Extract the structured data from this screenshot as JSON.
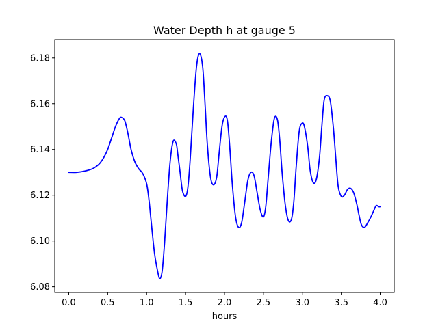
{
  "chart_data": {
    "type": "line",
    "title": "Water Depth h at gauge 5",
    "xlabel": "hours",
    "ylabel": "",
    "xlim": [
      -0.18,
      4.18
    ],
    "ylim": [
      6.0775,
      6.188
    ],
    "xticks": [
      0.0,
      0.5,
      1.0,
      1.5,
      2.0,
      2.5,
      3.0,
      3.5,
      4.0
    ],
    "xtick_labels": [
      "0.0",
      "0.5",
      "1.0",
      "1.5",
      "2.0",
      "2.5",
      "3.0",
      "3.5",
      "4.0"
    ],
    "yticks": [
      6.08,
      6.1,
      6.12,
      6.14,
      6.16,
      6.18
    ],
    "ytick_labels": [
      "6.08",
      "6.10",
      "6.12",
      "6.14",
      "6.16",
      "6.18"
    ],
    "grid": false,
    "legend": "none",
    "series": [
      {
        "color": "#0000ff",
        "x": [
          0.0,
          0.1,
          0.2,
          0.3,
          0.35,
          0.4,
          0.45,
          0.5,
          0.55,
          0.6,
          0.65,
          0.68,
          0.72,
          0.76,
          0.8,
          0.85,
          0.9,
          0.95,
          1.0,
          1.03,
          1.06,
          1.1,
          1.14,
          1.17,
          1.2,
          1.23,
          1.26,
          1.3,
          1.34,
          1.38,
          1.4,
          1.43,
          1.46,
          1.5,
          1.53,
          1.56,
          1.6,
          1.64,
          1.68,
          1.72,
          1.75,
          1.78,
          1.82,
          1.86,
          1.9,
          1.93,
          1.97,
          2.01,
          2.04,
          2.07,
          2.1,
          2.14,
          2.18,
          2.22,
          2.26,
          2.3,
          2.34,
          2.38,
          2.42,
          2.46,
          2.5,
          2.53,
          2.56,
          2.6,
          2.64,
          2.68,
          2.71,
          2.74,
          2.78,
          2.82,
          2.86,
          2.89,
          2.92,
          2.96,
          3.0,
          3.03,
          3.07,
          3.1,
          3.14,
          3.18,
          3.22,
          3.25,
          3.28,
          3.32,
          3.36,
          3.4,
          3.43,
          3.46,
          3.5,
          3.54,
          3.58,
          3.62,
          3.66,
          3.7,
          3.73,
          3.76,
          3.8,
          3.84,
          3.88,
          3.92,
          3.95,
          3.98,
          4.0
        ],
        "y": [
          6.13,
          6.13,
          6.1305,
          6.1315,
          6.1325,
          6.134,
          6.1365,
          6.14,
          6.145,
          6.15,
          6.1535,
          6.154,
          6.1525,
          6.147,
          6.14,
          6.1345,
          6.1315,
          6.1295,
          6.125,
          6.118,
          6.108,
          6.095,
          6.087,
          6.0835,
          6.087,
          6.099,
          6.115,
          6.134,
          6.1435,
          6.1425,
          6.138,
          6.13,
          6.122,
          6.1195,
          6.1235,
          6.136,
          6.158,
          6.176,
          6.182,
          6.176,
          6.16,
          6.142,
          6.128,
          6.1245,
          6.128,
          6.138,
          6.1505,
          6.1545,
          6.152,
          6.14,
          6.125,
          6.111,
          6.106,
          6.108,
          6.117,
          6.1265,
          6.13,
          6.1285,
          6.121,
          6.1135,
          6.1105,
          6.115,
          6.127,
          6.143,
          6.1535,
          6.153,
          6.144,
          6.13,
          6.116,
          6.109,
          6.1095,
          6.117,
          6.132,
          6.148,
          6.1515,
          6.1495,
          6.141,
          6.131,
          6.1255,
          6.127,
          6.1365,
          6.15,
          6.1615,
          6.1635,
          6.161,
          6.149,
          6.136,
          6.124,
          6.1195,
          6.12,
          6.1225,
          6.123,
          6.121,
          6.116,
          6.111,
          6.107,
          6.106,
          6.108,
          6.1105,
          6.1135,
          6.1155,
          6.115,
          6.115
        ]
      }
    ]
  }
}
